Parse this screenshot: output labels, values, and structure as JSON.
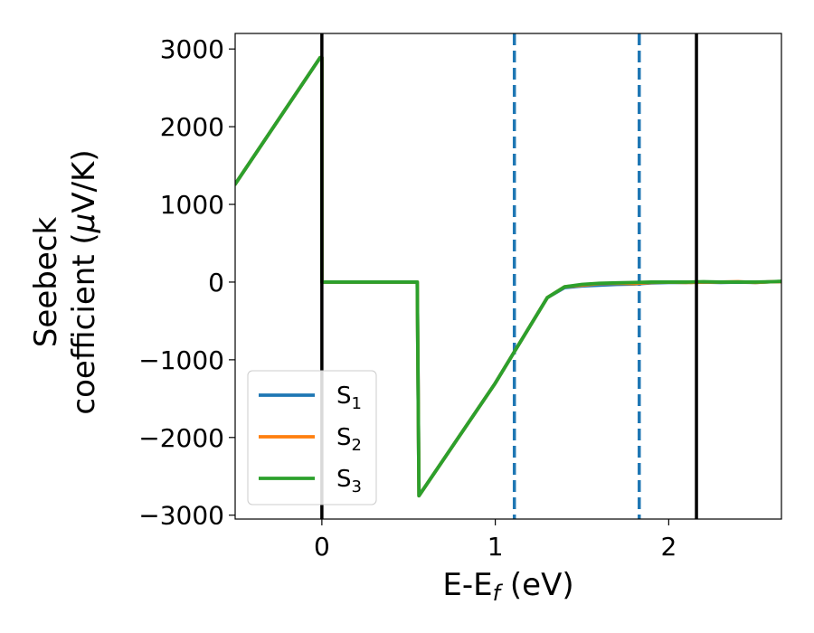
{
  "chart_data": {
    "type": "line",
    "title": "",
    "xlabel": "E-E",
    "xlabel_sub": "f",
    "xlabel_unit": " (eV)",
    "ylabel_line1": "Seebeck",
    "ylabel_line2_prefix": "coefficient  (",
    "ylabel_mu": "μ",
    "ylabel_line2_suffix": "V/K)",
    "xlim": [
      -0.5,
      2.65
    ],
    "ylim": [
      -3050,
      3200
    ],
    "xticks": [
      0,
      1,
      2
    ],
    "xtick_labels": [
      "0",
      "1",
      "2"
    ],
    "yticks": [
      -3000,
      -2000,
      -1000,
      0,
      1000,
      2000,
      3000
    ],
    "ytick_labels": [
      "−3000",
      "−2000",
      "−1000",
      "0",
      "1000",
      "2000",
      "3000"
    ],
    "grid": false,
    "legend_position": "lower-left",
    "vlines_solid": [
      0.0,
      2.16
    ],
    "vlines_dashed": [
      1.11,
      1.83
    ],
    "vline_solid_color": "#000000",
    "vline_dashed_color": "#1f77b4",
    "series": [
      {
        "name": "S",
        "sub": "1",
        "color": "#1f77b4",
        "x": [
          -0.5,
          -0.01,
          0.0,
          0.0,
          0.55,
          0.56,
          1.0,
          1.3,
          1.4,
          1.5,
          1.6,
          1.7,
          1.8,
          1.9,
          2.0,
          2.1,
          2.2,
          2.3,
          2.4,
          2.5,
          2.6,
          2.65
        ],
        "y": [
          1260,
          2890,
          2890,
          0,
          0,
          -2750,
          -1300,
          -200,
          -70,
          -50,
          -40,
          -30,
          -25,
          -10,
          -5,
          -5,
          0,
          -5,
          0,
          -5,
          5,
          5
        ]
      },
      {
        "name": "S",
        "sub": "2",
        "color": "#ff7f0e",
        "x": [
          -0.5,
          -0.01,
          0.0,
          0.0,
          0.55,
          0.56,
          1.0,
          1.3,
          1.4,
          1.5,
          1.6,
          1.7,
          1.8,
          1.9,
          2.0,
          2.1,
          2.2,
          2.3,
          2.4,
          2.5,
          2.6,
          2.65
        ],
        "y": [
          1260,
          2890,
          2890,
          0,
          0,
          -2750,
          -1300,
          -200,
          -60,
          -40,
          -20,
          -15,
          -20,
          -5,
          0,
          -5,
          0,
          0,
          5,
          -5,
          5,
          5
        ]
      },
      {
        "name": "S",
        "sub": "3",
        "color": "#2ca02c",
        "x": [
          -0.5,
          -0.01,
          0.0,
          0.0,
          0.55,
          0.56,
          1.0,
          1.3,
          1.4,
          1.5,
          1.6,
          1.7,
          1.8,
          1.9,
          2.0,
          2.1,
          2.2,
          2.3,
          2.4,
          2.5,
          2.6,
          2.65
        ],
        "y": [
          1260,
          2890,
          2890,
          0,
          0,
          -2750,
          -1300,
          -200,
          -60,
          -30,
          -15,
          -10,
          -5,
          0,
          0,
          0,
          5,
          0,
          0,
          0,
          5,
          10
        ]
      }
    ]
  }
}
